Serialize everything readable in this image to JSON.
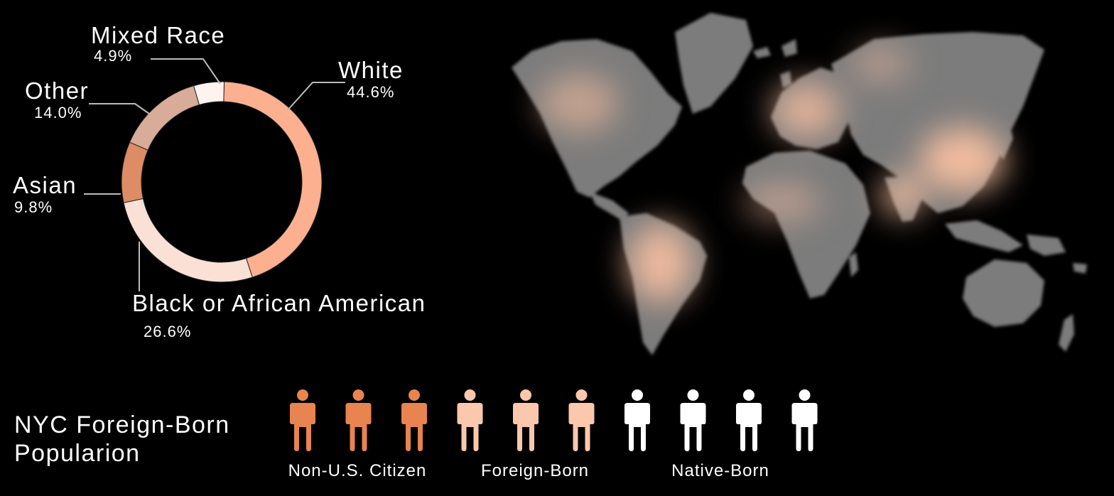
{
  "chart_data": [
    {
      "type": "pie",
      "variant": "donut",
      "slices": [
        {
          "label": "White",
          "value": 44.6,
          "display": "44.6%",
          "color": "#fdb08f"
        },
        {
          "label": "Black or African American",
          "value": 26.6,
          "display": "26.6%",
          "color": "#fbe0d6"
        },
        {
          "label": "Asian",
          "value": 9.8,
          "display": "9.8%",
          "color": "#dd8c66"
        },
        {
          "label": "Other",
          "value": 14.0,
          "display": "14.0%",
          "color": "#d9ab99"
        },
        {
          "label": "Mixed Race",
          "value": 4.9,
          "display": "4.9%",
          "color": "#fff3ef"
        }
      ]
    },
    {
      "type": "pictogram",
      "title": "NYC Foreign-Born Popularion",
      "groups": [
        {
          "label": "Non-U.S. Citizen",
          "count": 3,
          "color": "#e8844f"
        },
        {
          "label": "Foreign-Born",
          "count": 3,
          "color": "#fcc8ad"
        },
        {
          "label": "Native-Born",
          "count": 4,
          "color": "#ffffff"
        }
      ]
    }
  ],
  "map": {
    "land_color": "#7b7b7b",
    "highlight_color": "#ffc3a3",
    "hotspots": [
      "north-america",
      "europe",
      "south-america",
      "east-asia",
      "south-asia",
      "north-africa"
    ]
  }
}
